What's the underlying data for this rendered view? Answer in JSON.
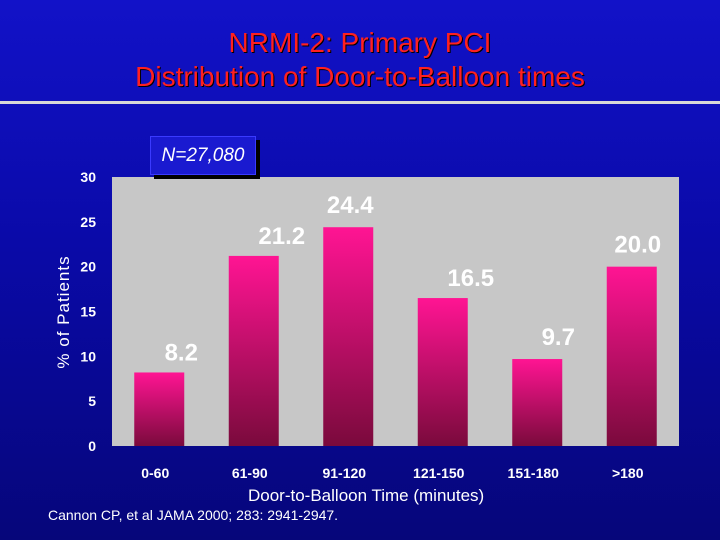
{
  "title_line1": "NRMI-2: Primary PCI",
  "title_line2": "Distribution of Door-to-Balloon times",
  "n_label": "N=27,080",
  "citation": "Cannon CP, et al JAMA 2000; 283: 2941-2947.",
  "colors": {
    "background": "#0a0aa8",
    "title": "#ff2020",
    "plot_area": "#c7c7c7",
    "bar_top": "#ff1493",
    "bar_bottom": "#7a0a3c"
  },
  "chart_data": {
    "type": "bar",
    "categories": [
      "0-60",
      "61-90",
      "91-120",
      "121-150",
      "151-180",
      ">180"
    ],
    "values": [
      8.2,
      21.2,
      24.4,
      16.5,
      9.7,
      20.0
    ],
    "value_labels": [
      "8.2",
      "21.2",
      "24.4",
      "16.5",
      "9.7",
      "20.0"
    ],
    "xlabel": "Door-to-Balloon Time (minutes)",
    "ylabel": "% of Patients",
    "ylim": [
      0,
      30
    ],
    "yticks": [
      "0",
      "5",
      "10",
      "15",
      "20",
      "25",
      "30"
    ],
    "grid": false,
    "legend": "none"
  }
}
